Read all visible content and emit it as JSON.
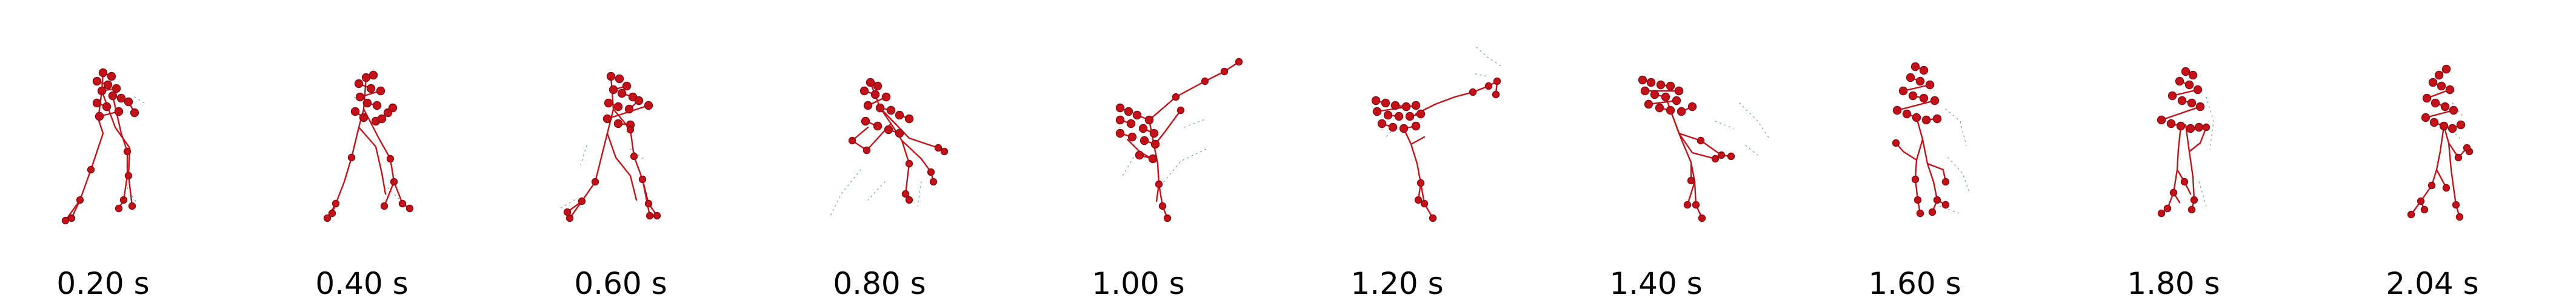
{
  "figure": {
    "skeleton_color": "#c4111a",
    "joint_edge_color": "#8a0a10",
    "ghost_color": "#7f93a8",
    "background": "#ffffff",
    "frames": [
      {
        "time_label": "0.20 s",
        "pose": "standing-step"
      },
      {
        "time_label": "0.40 s",
        "pose": "standing-step"
      },
      {
        "time_label": "0.60 s",
        "pose": "crouch-step"
      },
      {
        "time_label": "0.80 s",
        "pose": "crouch-twist"
      },
      {
        "time_label": "1.00 s",
        "pose": "high-kick"
      },
      {
        "time_label": "1.20 s",
        "pose": "high-kick-extended"
      },
      {
        "time_label": "1.40 s",
        "pose": "kick-retract"
      },
      {
        "time_label": "1.60 s",
        "pose": "recover"
      },
      {
        "time_label": "1.80 s",
        "pose": "upright"
      },
      {
        "time_label": "2.04 s",
        "pose": "upright-side"
      }
    ]
  }
}
